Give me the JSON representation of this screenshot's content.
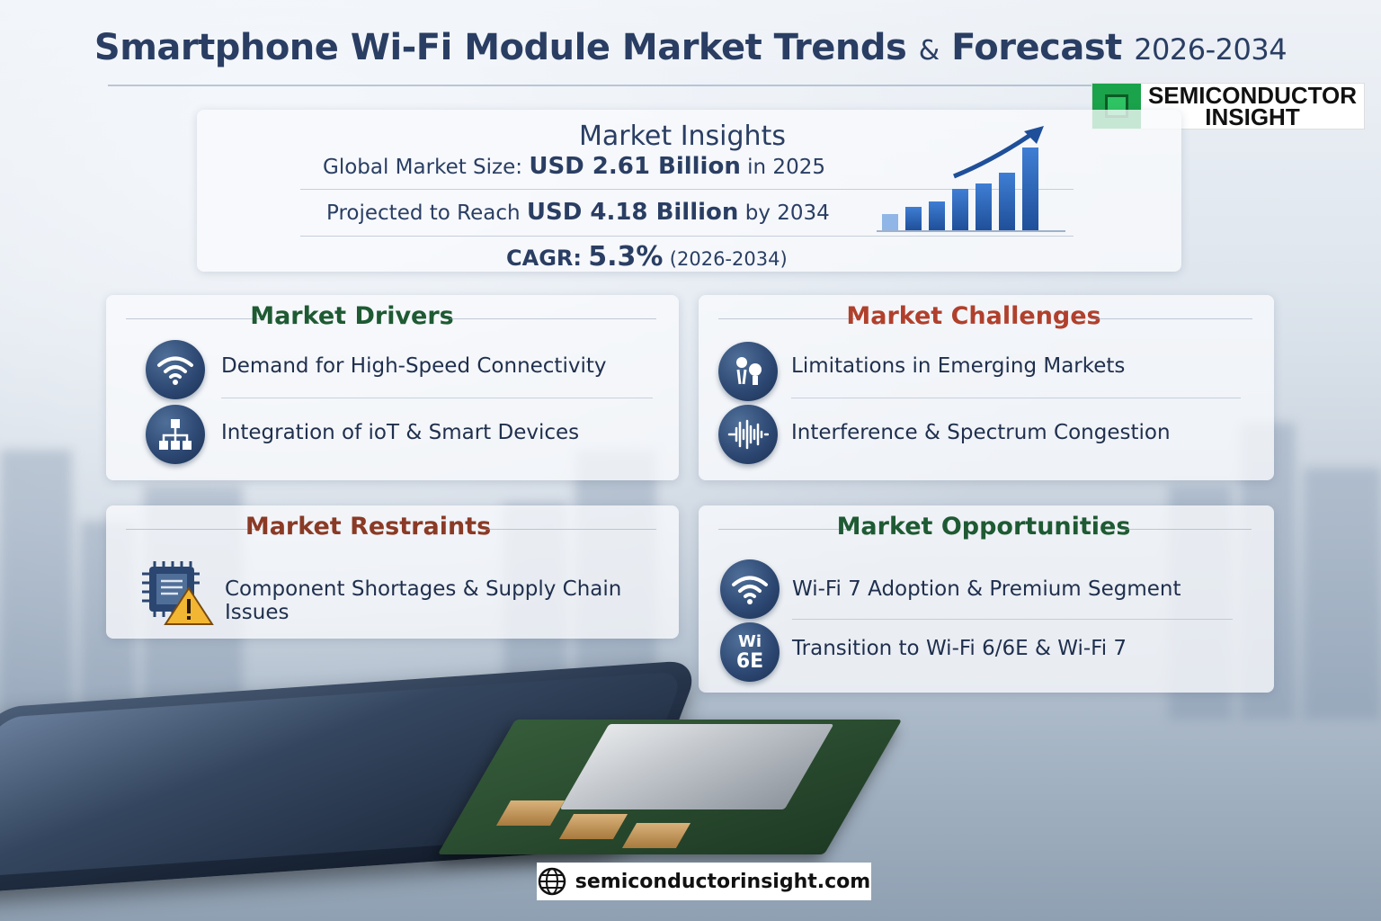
{
  "header": {
    "title_main": "Smartphone Wi-Fi Module Market Trends",
    "title_amp": "&",
    "title_forecast": "Forecast",
    "title_years": "2026-2034"
  },
  "logo": {
    "line1": "SEMICONDUCTOR",
    "line2": "INSIGHT",
    "icon": "chip-icon",
    "color": "#1aa34a"
  },
  "insights": {
    "title": "Market Insights",
    "size_prefix": "Global Market Size:",
    "size_value": "USD 2.61 Billion",
    "size_suffix": "in 2025",
    "proj_prefix": "Projected to Reach",
    "proj_value": "USD 4.18 Billion",
    "proj_suffix": "by 2034",
    "cagr_label": "CAGR:",
    "cagr_value": "5.3%",
    "cagr_period": "(2026-2034)",
    "chart_icon": "growth-bar-chart-icon"
  },
  "drivers": {
    "title": "Market Drivers",
    "items": [
      {
        "label": "Demand for High-Speed Connectivity",
        "icon": "wifi-icon"
      },
      {
        "label": "Integration of ioT & Smart Devices",
        "icon": "network-nodes-icon"
      }
    ]
  },
  "challenges": {
    "title": "Market Challenges",
    "items": [
      {
        "label": "Limitations in Emerging Markets",
        "icon": "lightbulb-people-icon"
      },
      {
        "label": "Interference & Spectrum Congestion",
        "icon": "signal-wave-icon"
      }
    ]
  },
  "restraints": {
    "title": "Market Restraints",
    "items": [
      {
        "label": "Component Shortages & Supply Chain Issues",
        "icon": "chip-warning-icon"
      }
    ]
  },
  "opportunities": {
    "title": "Market Opportunities",
    "items": [
      {
        "label": "Wi-Fi 7 Adoption & Premium Segment",
        "icon": "wifi-icon"
      },
      {
        "label": "Transition to Wi-Fi 6/6E & Wi-Fi 7",
        "icon": "wifi-6e-icon",
        "badge_line1": "Wi",
        "badge_line2": "6E"
      }
    ]
  },
  "footer": {
    "url": "semiconductorinsight.com",
    "icon": "globe-icon"
  },
  "colors": {
    "title": "#2a3e63",
    "drivers": "#1e5a33",
    "challenges": "#b0402c",
    "restraints": "#8a3a25",
    "opportunities": "#1e5a33",
    "icon_bg": "#2b4670",
    "bar": "#2f67b8"
  }
}
